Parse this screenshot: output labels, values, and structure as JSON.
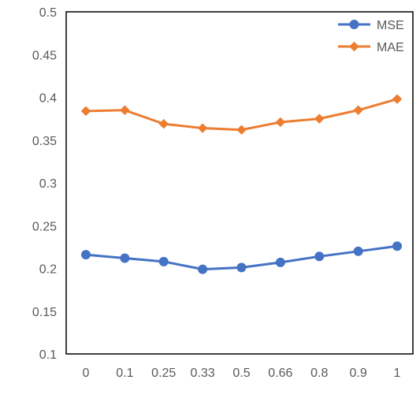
{
  "chart_data": {
    "type": "line",
    "title": "",
    "xlabel": "",
    "ylabel": "",
    "categories": [
      "0",
      "0.1",
      "0.25",
      "0.33",
      "0.5",
      "0.66",
      "0.8",
      "0.9",
      "1"
    ],
    "ylim": [
      0.1,
      0.5
    ],
    "y_ticks": [
      "0.1",
      "0.15",
      "0.2",
      "0.25",
      "0.3",
      "0.35",
      "0.4",
      "0.45",
      "0.5"
    ],
    "grid": false,
    "legend_position": "top-right",
    "series": [
      {
        "name": "MSE",
        "color": "#4472C4",
        "marker": "circle",
        "values": [
          0.216,
          0.212,
          0.208,
          0.199,
          0.201,
          0.207,
          0.214,
          0.22,
          0.226
        ]
      },
      {
        "name": "MAE",
        "color": "#ED7D31",
        "marker": "diamond",
        "values": [
          0.384,
          0.385,
          0.369,
          0.364,
          0.362,
          0.371,
          0.375,
          0.385,
          0.398
        ]
      }
    ]
  }
}
